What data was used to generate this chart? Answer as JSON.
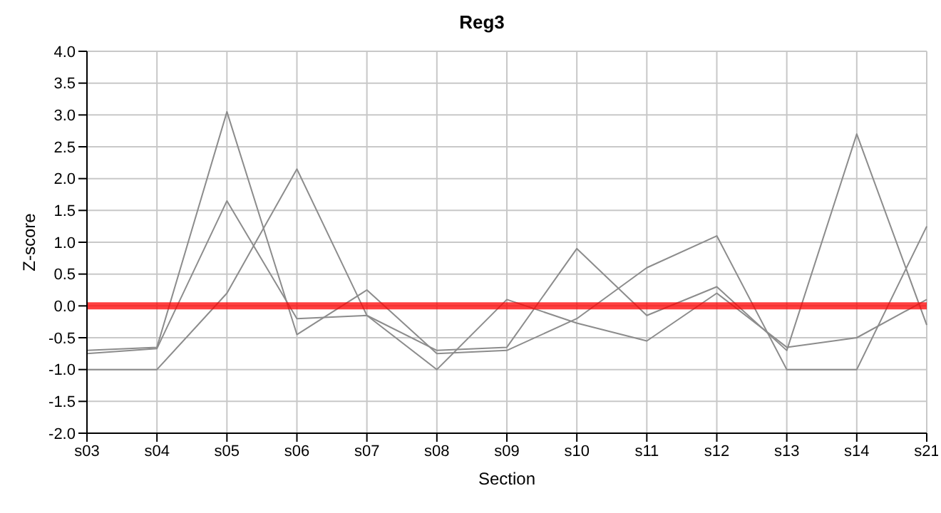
{
  "chart_data": {
    "type": "line",
    "title": "Reg3",
    "xlabel": "Section",
    "ylabel": "Z-score",
    "categories": [
      "s03",
      "s04",
      "s05",
      "s06",
      "s07",
      "s08",
      "s09",
      "s10",
      "s11",
      "s12",
      "s13",
      "s14",
      "s21"
    ],
    "series": [
      {
        "color": "#8c8c8c",
        "values": [
          -1.0,
          -1.0,
          0.2,
          2.15,
          -0.15,
          -0.7,
          -0.65,
          0.9,
          -0.15,
          0.3,
          -0.7,
          2.7,
          -0.3
        ]
      },
      {
        "color": "#8c8c8c",
        "values": [
          -0.7,
          -0.65,
          3.05,
          -0.45,
          0.25,
          -0.75,
          -0.7,
          -0.2,
          0.6,
          1.1,
          -1.0,
          -1.0,
          1.25
        ]
      },
      {
        "color": "#8c8c8c",
        "values": [
          -0.75,
          -0.67,
          1.65,
          -0.2,
          -0.15,
          -1.0,
          0.1,
          -0.27,
          -0.55,
          0.2,
          -0.65,
          -0.5,
          0.1
        ]
      }
    ],
    "ylim": [
      -2.0,
      4.0
    ],
    "yticks": [
      {
        "value": -2,
        "label": "-2.0"
      },
      {
        "value": -1.5,
        "label": "-1.5"
      },
      {
        "value": -1,
        "label": "-1.0"
      },
      {
        "value": -0.5,
        "label": "-0.5"
      },
      {
        "value": 0,
        "label": "0.0"
      },
      {
        "value": 0.5,
        "label": "0.5"
      },
      {
        "value": 1,
        "label": "1.0"
      },
      {
        "value": 1.5,
        "label": "1.5"
      },
      {
        "value": 2,
        "label": "2.0"
      },
      {
        "value": 2.5,
        "label": "2.5"
      },
      {
        "value": 3,
        "label": "3.0"
      },
      {
        "value": 3.5,
        "label": "3.5"
      },
      {
        "value": 4,
        "label": "4.0"
      }
    ],
    "ref_lines": [
      {
        "axis": "y",
        "value": 0,
        "color": "#ff0000"
      }
    ],
    "grid": true,
    "legend": false,
    "marker": "none",
    "line_style": "solid"
  }
}
